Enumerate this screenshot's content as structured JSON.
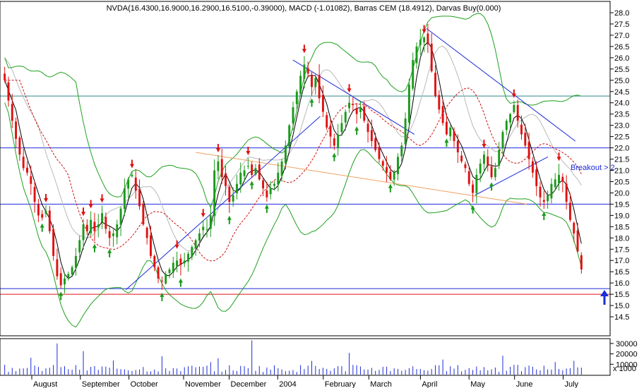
{
  "chart_data": {
    "type": "candlestick",
    "title": "NVDA(16.4300,16.9000,16.2900,16.5100,-0.39000), MACD (-1.01082), Barras CEM (18.4912), Darvas Buy(0.000)",
    "price_axis": {
      "min": 14.0,
      "max": 28.0,
      "ticks": [
        "14.5",
        "15.0",
        "15.5",
        "16.0",
        "16.5",
        "17.0",
        "17.5",
        "18.0",
        "18.5",
        "19.0",
        "19.5",
        "20.0",
        "20.5",
        "21.0",
        "21.5",
        "22.0",
        "22.5",
        "23.0",
        "23.5",
        "24.0",
        "24.5",
        "25.0",
        "25.5",
        "26.0",
        "26.5",
        "27.0",
        "27.5",
        "28.0"
      ]
    },
    "volume_axis": {
      "ticks": [
        "10000",
        "20000",
        "30000"
      ],
      "unit": "x 1000"
    },
    "months": [
      "August",
      "September",
      "October",
      "November",
      "December",
      "2004",
      "February",
      "March",
      "April",
      "May",
      "June",
      "July"
    ],
    "horizontal_lines": [
      {
        "value": 24.3,
        "color": "#2e8b8b"
      },
      {
        "value": 22.0,
        "color": "#1d2bd8"
      },
      {
        "value": 19.5,
        "color": "#1d2bd8"
      },
      {
        "value": 15.75,
        "color": "#1d2bd8"
      },
      {
        "value": 15.5,
        "color": "#e01010"
      }
    ],
    "annotation": "Breakout > 2",
    "closes": [
      25.0,
      24.1,
      23.2,
      22.4,
      21.7,
      21.1,
      20.9,
      20.4,
      19.6,
      19.0,
      18.9,
      19.2,
      18.3,
      17.2,
      16.3,
      15.9,
      16.2,
      16.4,
      16.7,
      17.2,
      17.9,
      18.6,
      18.3,
      18.8,
      18.3,
      18.6,
      19.1,
      18.4,
      18.0,
      18.2,
      18.6,
      19.3,
      20.2,
      20.6,
      20.8,
      20.1,
      19.4,
      18.6,
      18.0,
      17.2,
      16.7,
      16.2,
      16.1,
      16.4,
      16.6,
      16.9,
      17.0,
      16.8,
      17.0,
      17.3,
      17.6,
      17.9,
      18.2,
      18.5,
      18.4,
      19.0,
      21.0,
      21.4,
      20.7,
      20.3,
      19.6,
      19.9,
      20.4,
      20.9,
      21.0,
      21.2,
      20.8,
      21.1,
      20.6,
      20.2,
      19.8,
      20.2,
      20.4,
      20.9,
      21.4,
      22.1,
      23.0,
      23.8,
      24.5,
      25.2,
      25.7,
      25.3,
      24.7,
      25.1,
      24.2,
      23.6,
      22.9,
      22.5,
      22.1,
      22.6,
      23.1,
      23.6,
      24.0,
      23.9,
      23.5,
      23.8,
      23.2,
      22.7,
      22.3,
      21.9,
      21.5,
      21.2,
      20.9,
      20.6,
      20.9,
      21.6,
      22.1,
      23.3,
      24.8,
      25.9,
      26.5,
      26.8,
      26.9,
      26.6,
      25.4,
      24.3,
      23.7,
      23.1,
      22.6,
      22.9,
      22.3,
      21.8,
      21.4,
      21.1,
      20.4,
      20.0,
      20.8,
      21.3,
      21.7,
      21.2,
      20.7,
      21.1,
      21.9,
      22.7,
      23.2,
      23.5,
      23.9,
      23.2,
      22.6,
      22.1,
      21.5,
      20.9,
      20.3,
      19.8,
      19.6,
      19.9,
      20.4,
      20.6,
      20.8,
      20.5,
      19.6,
      18.8,
      18.2,
      17.4,
      16.6
    ]
  }
}
